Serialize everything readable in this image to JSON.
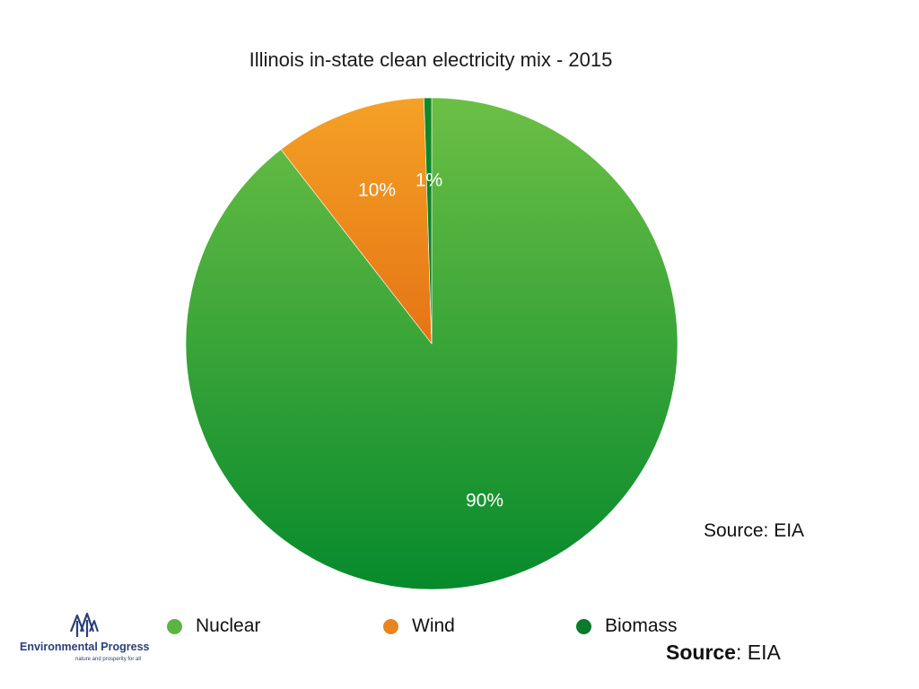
{
  "chart_data": {
    "type": "pie",
    "title": "Illinois in-state clean electricity mix - 2015",
    "slices": [
      {
        "name": "Nuclear",
        "value": 89.5,
        "label": "90%",
        "color_top": "#6cbf45",
        "color_bottom": "#078a2c"
      },
      {
        "name": "Wind",
        "value": 10.0,
        "label": "10%",
        "color_top": "#f5a126",
        "color_bottom": "#e57414"
      },
      {
        "name": "Biomass",
        "value": 0.5,
        "label": "1%",
        "color_top": "#108a2a",
        "color_bottom": "#0a7a24"
      }
    ],
    "legend": {
      "placement": "bottom",
      "items": [
        {
          "name": "Nuclear",
          "color": "#5db442"
        },
        {
          "name": "Wind",
          "color": "#ea8420"
        },
        {
          "name": "Biomass",
          "color": "#0b7a2a"
        }
      ]
    }
  },
  "annotations": {
    "source_top": "Source: EIA",
    "source_bottom_label": "Source",
    "source_bottom_value": ": EIA"
  },
  "logo": {
    "name": "Environmental Progress",
    "tagline": "nature and prosperity for all",
    "icon": "tree-icon",
    "color": "#2b3f7a"
  }
}
